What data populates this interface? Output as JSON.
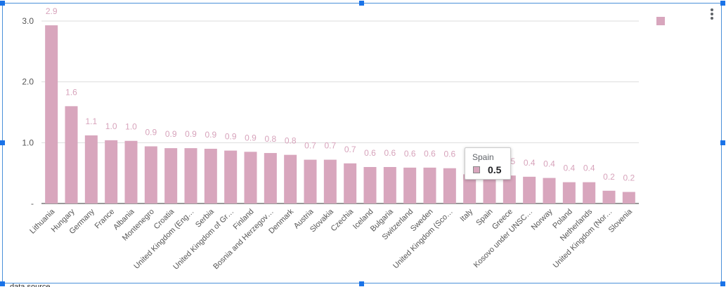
{
  "colors": {
    "bar": "#d8a6bd",
    "label": "#d7a3bb",
    "axis": "#555555",
    "grid": "#dddddd",
    "frame": "#4a90d9"
  },
  "icons": [
    "more-vert-icon"
  ],
  "chart_data": {
    "type": "bar",
    "title": "",
    "xlabel": "",
    "ylabel": "",
    "ylim": [
      0,
      3.0
    ],
    "yticks": [
      {
        "value": 0,
        "label": "-"
      },
      {
        "value": 1.0,
        "label": "1.0"
      },
      {
        "value": 2.0,
        "label": "2.0"
      },
      {
        "value": 3.0,
        "label": "3.0"
      }
    ],
    "categories": [
      "Lithuania",
      "Hungary",
      "Germany",
      "France",
      "Albania",
      "Montenegro",
      "Croatia",
      "United Kingdom (Eng…",
      "Serbia",
      "United Kingdom of Gr…",
      "Finland",
      "Bosnia and Herzegov…",
      "Denmark",
      "Austria",
      "Slovakia",
      "Czechia",
      "Iceland",
      "Bulgaria",
      "Switzerland",
      "Sweden",
      "United Kingdom (Sco…",
      "Italy",
      "Spain",
      "Greece",
      "Kosovo under UNSC…",
      "Norway",
      "Poland",
      "Netherlands",
      "United Kingdom (Nor…",
      "Slovenia"
    ],
    "values": [
      2.93,
      1.6,
      1.12,
      1.04,
      1.03,
      0.94,
      0.91,
      0.91,
      0.9,
      0.87,
      0.85,
      0.83,
      0.8,
      0.72,
      0.72,
      0.66,
      0.6,
      0.6,
      0.59,
      0.59,
      0.58,
      0.48,
      0.5,
      0.46,
      0.44,
      0.42,
      0.35,
      0.35,
      0.21,
      0.19
    ],
    "data_labels": [
      "2.9",
      "1.6",
      "1.1",
      "1.0",
      "1.0",
      "0.9",
      "0.9",
      "0.9",
      "0.9",
      "0.9",
      "0.9",
      "0.8",
      "0.8",
      "0.7",
      "0.7",
      "0.7",
      "0.6",
      "0.6",
      "0.6",
      "0.6",
      "0.6",
      "",
      "",
      "0.5",
      "0.4",
      "0.4",
      "0.4",
      "0.4",
      "0.2",
      "0.2"
    ],
    "legend": {
      "placement": "top-right",
      "entries": [
        ""
      ]
    },
    "tooltip": {
      "category": "Spain",
      "value": "0.5"
    }
  },
  "footer_text": "data source"
}
